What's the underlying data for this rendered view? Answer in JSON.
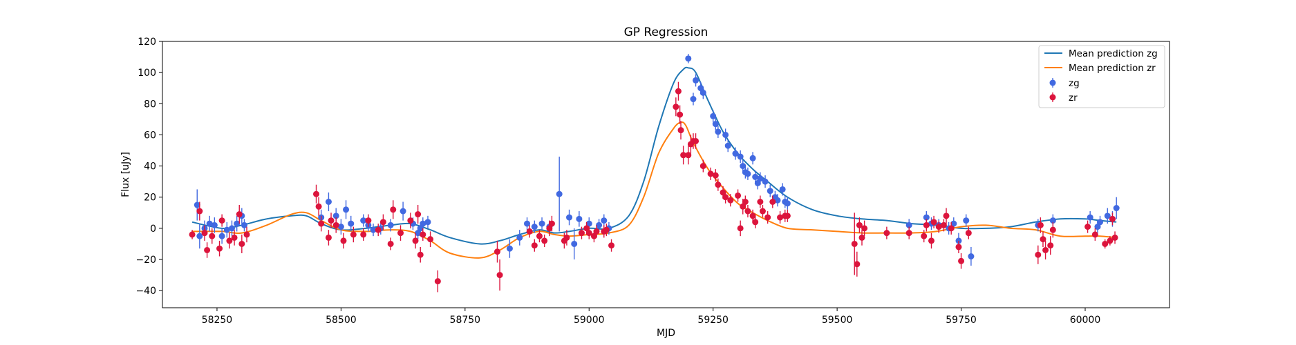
{
  "chart_data": {
    "type": "scatter",
    "title": "GP Regression",
    "xlabel": "MJD",
    "ylabel": "Flux [uJy]",
    "xlim": [
      58140,
      60170
    ],
    "ylim": [
      -51,
      120
    ],
    "xticks": [
      58250,
      58500,
      58750,
      59000,
      59250,
      59500,
      59750,
      60000
    ],
    "yticks": [
      -40,
      -20,
      0,
      20,
      40,
      60,
      80,
      100,
      120
    ],
    "grid": false,
    "legend": {
      "placement": "top-right",
      "entries": [
        "Mean prediction zg",
        "Mean prediction zr",
        "zg",
        "zr"
      ]
    },
    "lines": [
      {
        "name": "Mean prediction zg",
        "color": "#1f77b4",
        "x": [
          58200,
          58260,
          58300,
          58350,
          58400,
          58430,
          58460,
          58500,
          58550,
          58600,
          58640,
          58680,
          58720,
          58780,
          58820,
          58860,
          58900,
          58930,
          58960,
          59000,
          59040,
          59080,
          59110,
          59140,
          59170,
          59190,
          59200,
          59215,
          59240,
          59270,
          59300,
          59330,
          59360,
          59400,
          59450,
          59500,
          59550,
          59600,
          59650,
          59700,
          59750,
          59800,
          59850,
          59900,
          59950,
          60000,
          60030,
          60063
        ],
        "y": [
          4,
          0,
          2,
          6,
          8,
          8,
          3,
          -1,
          0,
          2,
          3,
          -1,
          -6,
          -10,
          -8,
          -4,
          -1,
          -3,
          -2,
          0,
          0,
          8,
          30,
          65,
          93,
          102,
          103,
          100,
          82,
          62,
          48,
          38,
          30,
          20,
          12,
          8,
          6,
          5,
          3,
          2,
          0,
          0,
          1,
          4,
          6,
          6,
          5,
          4
        ]
      },
      {
        "name": "Mean prediction zr",
        "color": "#ff7f0e",
        "x": [
          58200,
          58260,
          58300,
          58350,
          58400,
          58430,
          58460,
          58500,
          58550,
          58600,
          58640,
          58680,
          58720,
          58780,
          58820,
          58860,
          58900,
          58930,
          58960,
          59000,
          59040,
          59080,
          59110,
          59140,
          59170,
          59185,
          59195,
          59210,
          59240,
          59270,
          59300,
          59330,
          59360,
          59400,
          59450,
          59500,
          59550,
          59600,
          59650,
          59700,
          59750,
          59800,
          59850,
          59900,
          59950,
          60000,
          60030,
          60063
        ],
        "y": [
          -2,
          -2,
          -3,
          2,
          9,
          10,
          5,
          -1,
          -2,
          -1,
          -2,
          -8,
          -16,
          -19,
          -14,
          -6,
          -2,
          -4,
          -5,
          -4,
          -3,
          2,
          20,
          48,
          64,
          68,
          66,
          55,
          38,
          26,
          16,
          10,
          5,
          0,
          -1,
          -2,
          -3,
          -3,
          -3,
          -2,
          1,
          2,
          0,
          -1,
          -5,
          -5,
          -5,
          -6
        ]
      }
    ],
    "series": [
      {
        "name": "zg",
        "color": "#4169e1",
        "points": [
          [
            58210,
            15,
            10
          ],
          [
            58215,
            -5,
            8
          ],
          [
            58225,
            0,
            5
          ],
          [
            58235,
            3,
            5
          ],
          [
            58245,
            2,
            5
          ],
          [
            58260,
            -5,
            5
          ],
          [
            58270,
            -1,
            5
          ],
          [
            58280,
            0,
            5
          ],
          [
            58290,
            3,
            5
          ],
          [
            58300,
            8,
            5
          ],
          [
            58305,
            2,
            4
          ],
          [
            58460,
            7,
            5
          ],
          [
            58475,
            17,
            6
          ],
          [
            58490,
            8,
            5
          ],
          [
            58500,
            1,
            5
          ],
          [
            58510,
            12,
            6
          ],
          [
            58520,
            3,
            5
          ],
          [
            58545,
            5,
            4
          ],
          [
            58555,
            2,
            4
          ],
          [
            58565,
            -1,
            4
          ],
          [
            58580,
            0,
            4
          ],
          [
            58600,
            2,
            4
          ],
          [
            58625,
            11,
            6
          ],
          [
            58645,
            3,
            4
          ],
          [
            58655,
            -3,
            4
          ],
          [
            58660,
            0,
            4
          ],
          [
            58665,
            3,
            4
          ],
          [
            58675,
            4,
            4
          ],
          [
            58840,
            -13,
            6
          ],
          [
            58860,
            -6,
            5
          ],
          [
            58875,
            3,
            4
          ],
          [
            58890,
            1,
            4
          ],
          [
            58905,
            3,
            4
          ],
          [
            58920,
            1,
            4
          ],
          [
            58940,
            22,
            24
          ],
          [
            58960,
            7,
            5
          ],
          [
            58970,
            -10,
            10
          ],
          [
            58980,
            6,
            5
          ],
          [
            59000,
            3,
            4
          ],
          [
            59020,
            2,
            4
          ],
          [
            59030,
            5,
            4
          ],
          [
            59040,
            0,
            4
          ],
          [
            59200,
            109,
            3
          ],
          [
            59210,
            83,
            4
          ],
          [
            59215,
            95,
            4
          ],
          [
            59225,
            90,
            4
          ],
          [
            59230,
            87,
            4
          ],
          [
            59250,
            72,
            4
          ],
          [
            59255,
            67,
            4
          ],
          [
            59260,
            62,
            4
          ],
          [
            59275,
            60,
            4
          ],
          [
            59280,
            53,
            4
          ],
          [
            59295,
            48,
            4
          ],
          [
            59305,
            46,
            4
          ],
          [
            59310,
            40,
            4
          ],
          [
            59315,
            36,
            4
          ],
          [
            59320,
            35,
            4
          ],
          [
            59330,
            45,
            4
          ],
          [
            59335,
            33,
            4
          ],
          [
            59340,
            29,
            4
          ],
          [
            59345,
            32,
            4
          ],
          [
            59355,
            30,
            4
          ],
          [
            59365,
            24,
            4
          ],
          [
            59375,
            20,
            4
          ],
          [
            59380,
            18,
            4
          ],
          [
            59390,
            25,
            4
          ],
          [
            59395,
            17,
            4
          ],
          [
            59400,
            16,
            4
          ],
          [
            59645,
            2,
            4
          ],
          [
            59680,
            7,
            4
          ],
          [
            59690,
            3,
            4
          ],
          [
            59705,
            2,
            4
          ],
          [
            59725,
            0,
            4
          ],
          [
            59735,
            3,
            4
          ],
          [
            59745,
            -8,
            5
          ],
          [
            59760,
            5,
            4
          ],
          [
            59770,
            -18,
            6
          ],
          [
            59905,
            2,
            4
          ],
          [
            59935,
            5,
            4
          ],
          [
            60010,
            7,
            4
          ],
          [
            60025,
            1,
            4
          ],
          [
            60030,
            4,
            4
          ],
          [
            60045,
            8,
            5
          ],
          [
            60055,
            6,
            5
          ],
          [
            60063,
            13,
            7
          ]
        ]
      },
      {
        "name": "zr",
        "color": "#dc143c",
        "points": [
          [
            58200,
            -4,
            3
          ],
          [
            58215,
            11,
            6
          ],
          [
            58225,
            -3,
            5
          ],
          [
            58230,
            -14,
            5
          ],
          [
            58240,
            -5,
            5
          ],
          [
            58255,
            -13,
            5
          ],
          [
            58260,
            5,
            4
          ],
          [
            58275,
            -8,
            5
          ],
          [
            58285,
            -6,
            5
          ],
          [
            58295,
            9,
            6
          ],
          [
            58300,
            -10,
            6
          ],
          [
            58310,
            -4,
            5
          ],
          [
            58450,
            22,
            6
          ],
          [
            58455,
            14,
            6
          ],
          [
            58460,
            3,
            5
          ],
          [
            58475,
            -6,
            5
          ],
          [
            58480,
            5,
            5
          ],
          [
            58490,
            2,
            5
          ],
          [
            58505,
            -8,
            5
          ],
          [
            58525,
            -4,
            5
          ],
          [
            58545,
            -4,
            4
          ],
          [
            58555,
            5,
            4
          ],
          [
            58575,
            -1,
            4
          ],
          [
            58585,
            4,
            5
          ],
          [
            58600,
            -10,
            4
          ],
          [
            58605,
            12,
            6
          ],
          [
            58620,
            -3,
            5
          ],
          [
            58640,
            5,
            5
          ],
          [
            58650,
            -8,
            5
          ],
          [
            58655,
            9,
            6
          ],
          [
            58660,
            -17,
            5
          ],
          [
            58665,
            -4,
            4
          ],
          [
            58680,
            -7,
            5
          ],
          [
            58695,
            -34,
            7
          ],
          [
            58815,
            -15,
            7
          ],
          [
            58820,
            -30,
            10
          ],
          [
            58880,
            -2,
            4
          ],
          [
            58890,
            -11,
            4
          ],
          [
            58900,
            -5,
            4
          ],
          [
            58910,
            -8,
            4
          ],
          [
            58920,
            0,
            5
          ],
          [
            58925,
            3,
            5
          ],
          [
            58950,
            -8,
            5
          ],
          [
            58955,
            -6,
            5
          ],
          [
            58985,
            -3,
            4
          ],
          [
            58995,
            0,
            4
          ],
          [
            59000,
            -3,
            4
          ],
          [
            59010,
            -5,
            4
          ],
          [
            59015,
            -2,
            4
          ],
          [
            59030,
            -2,
            4
          ],
          [
            59035,
            -1,
            4
          ],
          [
            59045,
            -11,
            4
          ],
          [
            59175,
            78,
            6
          ],
          [
            59180,
            88,
            6
          ],
          [
            59183,
            73,
            6
          ],
          [
            59185,
            63,
            6
          ],
          [
            59190,
            47,
            6
          ],
          [
            59200,
            47,
            6
          ],
          [
            59205,
            54,
            6
          ],
          [
            59210,
            56,
            5
          ],
          [
            59215,
            56,
            5
          ],
          [
            59230,
            40,
            4
          ],
          [
            59245,
            35,
            4
          ],
          [
            59255,
            34,
            4
          ],
          [
            59260,
            28,
            4
          ],
          [
            59270,
            23,
            4
          ],
          [
            59275,
            20,
            4
          ],
          [
            59285,
            18,
            4
          ],
          [
            59300,
            21,
            4
          ],
          [
            59305,
            0,
            5
          ],
          [
            59310,
            14,
            5
          ],
          [
            59315,
            17,
            4
          ],
          [
            59320,
            11,
            4
          ],
          [
            59330,
            8,
            4
          ],
          [
            59335,
            4,
            4
          ],
          [
            59345,
            17,
            4
          ],
          [
            59350,
            11,
            4
          ],
          [
            59360,
            7,
            4
          ],
          [
            59370,
            17,
            4
          ],
          [
            59385,
            7,
            4
          ],
          [
            59395,
            8,
            4
          ],
          [
            59400,
            8,
            4
          ],
          [
            59535,
            -10,
            20
          ],
          [
            59540,
            -23,
            8
          ],
          [
            59545,
            2,
            5
          ],
          [
            59550,
            -6,
            5
          ],
          [
            59555,
            0,
            5
          ],
          [
            59600,
            -3,
            4
          ],
          [
            59645,
            -3,
            4
          ],
          [
            59675,
            -5,
            4
          ],
          [
            59680,
            2,
            4
          ],
          [
            59690,
            -8,
            5
          ],
          [
            59695,
            4,
            4
          ],
          [
            59705,
            1,
            4
          ],
          [
            59715,
            2,
            4
          ],
          [
            59720,
            8,
            5
          ],
          [
            59730,
            0,
            4
          ],
          [
            59745,
            -12,
            4
          ],
          [
            59750,
            -21,
            5
          ],
          [
            59765,
            -3,
            4
          ],
          [
            59905,
            -17,
            6
          ],
          [
            59910,
            2,
            5
          ],
          [
            59915,
            -7,
            5
          ],
          [
            59920,
            -14,
            6
          ],
          [
            59930,
            -11,
            6
          ],
          [
            59935,
            -1,
            5
          ],
          [
            60005,
            1,
            4
          ],
          [
            60020,
            -4,
            4
          ],
          [
            60040,
            -10,
            3
          ],
          [
            60050,
            -8,
            3
          ],
          [
            60055,
            6,
            4
          ],
          [
            60060,
            -6,
            4
          ]
        ]
      }
    ]
  }
}
